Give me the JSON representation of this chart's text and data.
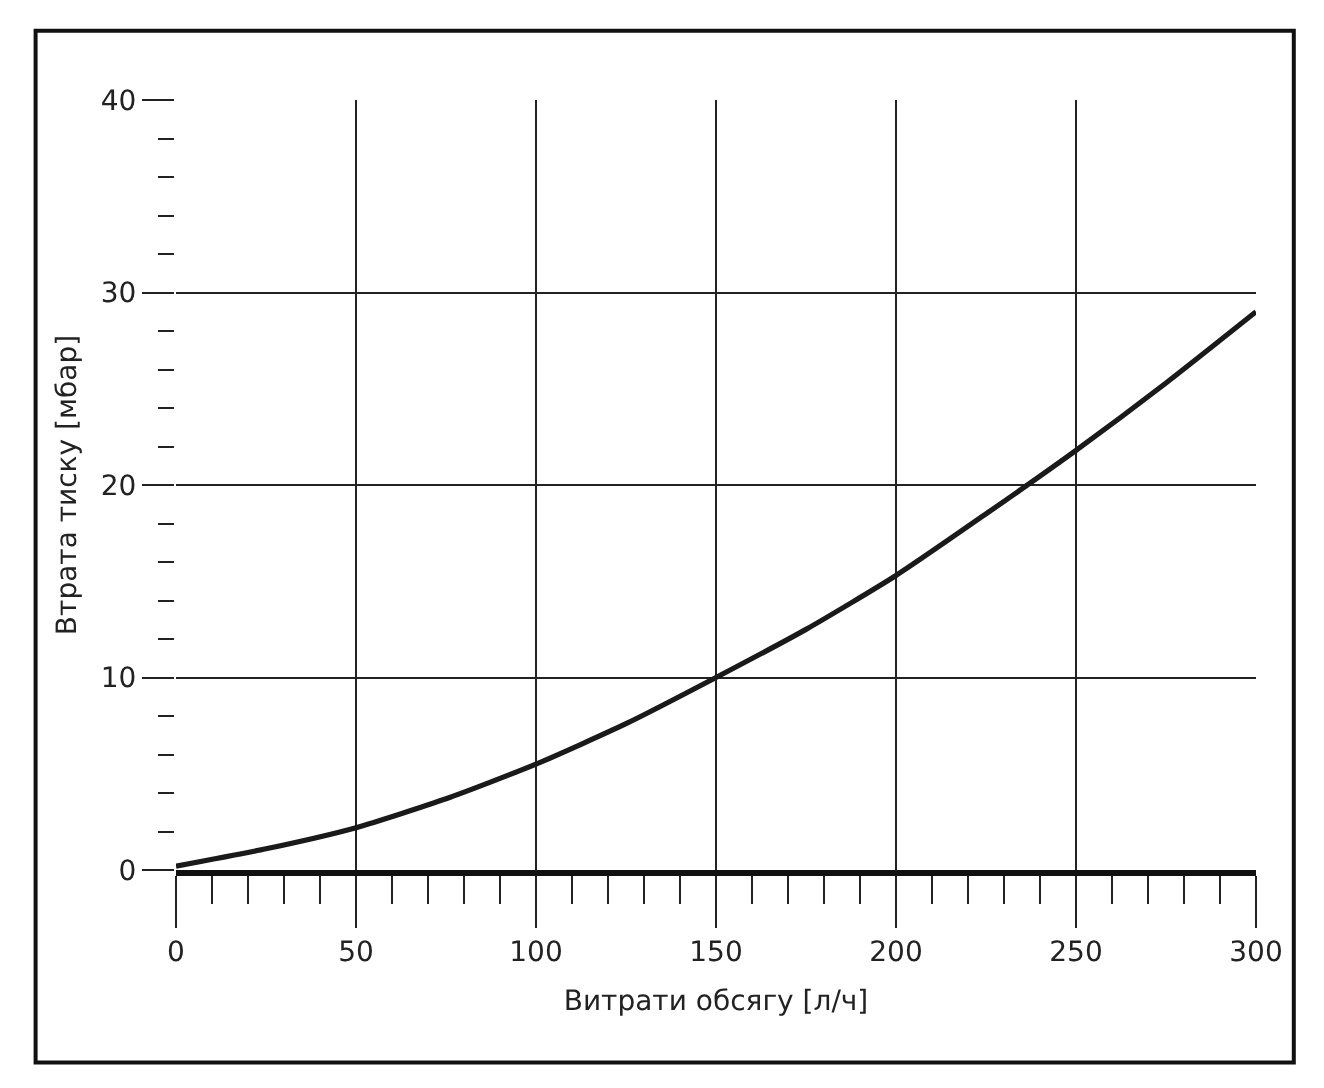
{
  "chart_data": {
    "type": "line",
    "xlabel": "Витрати обсягу [л/ч]",
    "ylabel": "Втрата тиску [мбар]",
    "x": [
      0,
      25,
      50,
      75,
      100,
      125,
      150,
      175,
      200,
      225,
      250,
      275,
      300
    ],
    "series": [
      {
        "color": "#1a1a1a",
        "values": [
          0.2,
          1.1,
          2.2,
          3.7,
          5.5,
          7.6,
          10,
          12.5,
          15.3,
          18.5,
          21.8,
          25.3,
          29
        ]
      }
    ],
    "xlim": [
      0,
      300
    ],
    "ylim": [
      0,
      40
    ],
    "xticks": [
      0,
      {
        "value": 10,
        "label": null
      },
      {
        "value": 20,
        "label": null
      },
      {
        "value": 30,
        "label": null
      },
      {
        "value": 40,
        "label": null
      },
      50,
      {
        "value": 60,
        "label": null
      },
      {
        "value": 70,
        "label": null
      },
      {
        "value": 80,
        "label": null
      },
      {
        "value": 90,
        "label": null
      },
      100,
      {
        "value": 110,
        "label": null
      },
      {
        "value": 120,
        "label": null
      },
      {
        "value": 130,
        "label": null
      },
      {
        "value": 140,
        "label": null
      },
      150,
      {
        "value": 160,
        "label": null
      },
      {
        "value": 170,
        "label": null
      },
      {
        "value": 180,
        "label": null
      },
      {
        "value": 190,
        "label": null
      },
      200,
      {
        "value": 210,
        "label": null
      },
      {
        "value": 220,
        "label": null
      },
      {
        "value": 230,
        "label": null
      },
      {
        "value": 240,
        "label": null
      },
      250,
      {
        "value": 260,
        "label": null
      },
      {
        "value": 270,
        "label": null
      },
      {
        "value": 280,
        "label": null
      },
      {
        "value": 290,
        "label": null
      },
      300
    ],
    "yticks": [
      0,
      {
        "value": 2,
        "label": null
      },
      {
        "value": 4,
        "label": null
      },
      {
        "value": 6,
        "label": null
      },
      {
        "value": 8,
        "label": null
      },
      10,
      {
        "value": 12,
        "label": null
      },
      {
        "value": 14,
        "label": null
      },
      {
        "value": 16,
        "label": null
      },
      {
        "value": 18,
        "label": null
      },
      20,
      {
        "value": 22,
        "label": null
      },
      {
        "value": 24,
        "label": null
      },
      {
        "value": 26,
        "label": null
      },
      {
        "value": 28,
        "label": null
      },
      30,
      {
        "value": 32,
        "label": null
      },
      {
        "value": 34,
        "label": null
      },
      {
        "value": 36,
        "label": null
      },
      {
        "value": 38,
        "label": null
      },
      40
    ],
    "grid": true,
    "marker": "none",
    "line_style": "solid"
  }
}
